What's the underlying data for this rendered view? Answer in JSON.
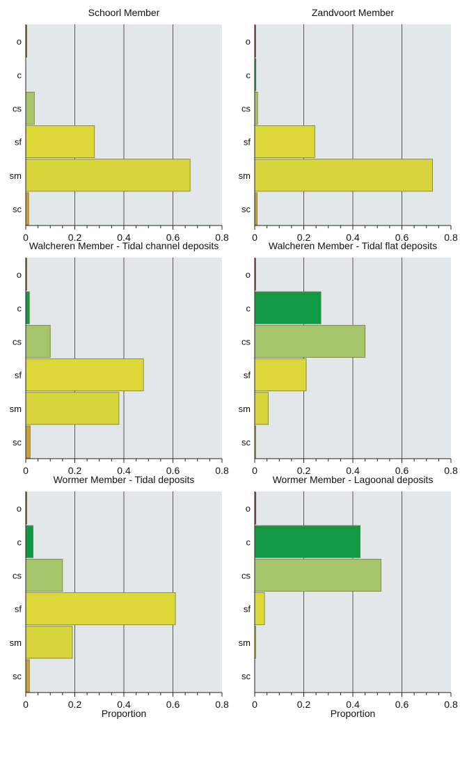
{
  "figure": {
    "xlabel": "Proportion"
  },
  "colors": {
    "o": "#8b3a2a",
    "c": "#119944",
    "cs": "#a6c46a",
    "sf": "#dcd838",
    "sm": "#d6d43a",
    "sc": "#c8a238",
    "plot_bg": "#e2e7ea",
    "grid": "#555555",
    "bar_edge": "#7a7a3a"
  },
  "chart_data": [
    {
      "type": "bar",
      "orientation": "horizontal",
      "title": "Schoorl Member",
      "categories": [
        "o",
        "c",
        "cs",
        "sf",
        "sm",
        "sc"
      ],
      "values": [
        0.003,
        0.0,
        0.035,
        0.28,
        0.67,
        0.012
      ],
      "xlim": [
        0,
        0.8
      ],
      "xticks": [
        "0",
        "0.2",
        "0.4",
        "0.6",
        "0.8"
      ],
      "grid": true
    },
    {
      "type": "bar",
      "orientation": "horizontal",
      "title": "Zandvoort Member",
      "categories": [
        "o",
        "c",
        "cs",
        "sf",
        "sm",
        "sc"
      ],
      "values": [
        0.002,
        0.005,
        0.012,
        0.245,
        0.725,
        0.01
      ],
      "xlim": [
        0,
        0.8
      ],
      "xticks": [
        "0",
        "0.2",
        "0.4",
        "0.6",
        "0.8"
      ],
      "grid": true
    },
    {
      "type": "bar",
      "orientation": "horizontal",
      "title": "Walcheren Member - Tidal channel deposits",
      "categories": [
        "o",
        "c",
        "cs",
        "sf",
        "sm",
        "sc"
      ],
      "values": [
        0.003,
        0.015,
        0.1,
        0.48,
        0.38,
        0.018
      ],
      "xlim": [
        0,
        0.8
      ],
      "xticks": [
        "0",
        "0.2",
        "0.4",
        "0.6",
        "0.8"
      ],
      "grid": true
    },
    {
      "type": "bar",
      "orientation": "horizontal",
      "title": "Walcheren Member - Tidal flat deposits",
      "categories": [
        "o",
        "c",
        "cs",
        "sf",
        "sm",
        "sc"
      ],
      "values": [
        0.003,
        0.27,
        0.45,
        0.21,
        0.055,
        0.002
      ],
      "xlim": [
        0,
        0.8
      ],
      "xticks": [
        "0",
        "0.2",
        "0.4",
        "0.6",
        "0.8"
      ],
      "grid": true
    },
    {
      "type": "bar",
      "orientation": "horizontal",
      "title": "Wormer Member - Tidal deposits",
      "categories": [
        "o",
        "c",
        "cs",
        "sf",
        "sm",
        "sc"
      ],
      "values": [
        0.002,
        0.03,
        0.15,
        0.61,
        0.19,
        0.015
      ],
      "xlim": [
        0,
        0.8
      ],
      "xticks": [
        "0",
        "0.2",
        "0.4",
        "0.6",
        "0.8"
      ],
      "xlabel": "Proportion",
      "grid": true
    },
    {
      "type": "bar",
      "orientation": "horizontal",
      "title": "Wormer Member - Lagoonal deposits",
      "categories": [
        "o",
        "c",
        "cs",
        "sf",
        "sm",
        "sc"
      ],
      "values": [
        0.005,
        0.43,
        0.515,
        0.04,
        0.003,
        0.0
      ],
      "xlim": [
        0,
        0.8
      ],
      "xticks": [
        "0",
        "0.2",
        "0.4",
        "0.6",
        "0.8"
      ],
      "xlabel": "Proportion",
      "grid": true
    }
  ]
}
